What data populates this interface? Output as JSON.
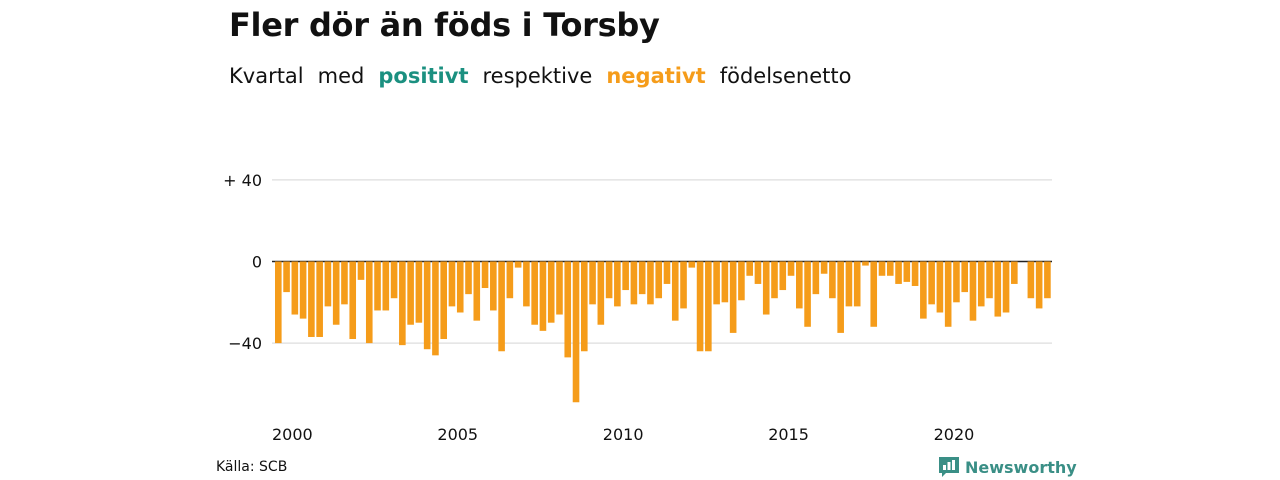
{
  "title": "Fler dör än föds i Torsby",
  "subtitle": {
    "w1": "Kvartal",
    "w2": "med",
    "positive": "positivt",
    "w3": "respektive",
    "negative": "negativt",
    "w4": "födelsenetto"
  },
  "colors": {
    "positive": "#1b9080",
    "negative": "#f59c1a",
    "brand": "#3a8f86"
  },
  "source": "Källa: SCB",
  "brand": {
    "name": "Newsworthy",
    "icon": "newsworthy-logo-icon"
  },
  "chart_data": {
    "type": "bar",
    "title": "Fler dör än föds i Torsby",
    "x_ticks": [
      "2000",
      "2005",
      "2010",
      "2015",
      "2020"
    ],
    "y_ticks": [
      {
        "value": 40,
        "label": "+ 40"
      },
      {
        "value": 0,
        "label": "0"
      },
      {
        "value": -40,
        "label": "−40"
      }
    ],
    "ylim": [
      -70,
      45
    ],
    "x_start_year": 2000,
    "grid": true,
    "values": [
      -40,
      -15,
      -26,
      -28,
      -37,
      -37,
      -22,
      -31,
      -21,
      -38,
      -9,
      -40,
      -24,
      -24,
      -18,
      -41,
      -31,
      -30,
      -43,
      -46,
      -38,
      -22,
      -25,
      -16,
      -29,
      -13,
      -24,
      -44,
      -18,
      -3,
      -22,
      -31,
      -34,
      -30,
      -26,
      -47,
      -69,
      -44,
      -21,
      -31,
      -18,
      -22,
      -14,
      -21,
      -16,
      -21,
      -18,
      -11,
      -29,
      -23,
      -3,
      -44,
      -44,
      -21,
      -20,
      -35,
      -19,
      -7,
      -11,
      -26,
      -18,
      -14,
      -7,
      -23,
      -32,
      -16,
      -6,
      -18,
      -35,
      -22,
      -22,
      -2,
      -32,
      -7,
      -7,
      -11,
      -10,
      -12,
      -28,
      -21,
      -25,
      -32,
      -20,
      -15,
      -29,
      -22,
      -18,
      -27,
      -25,
      -11,
      0,
      -18,
      -23,
      -18
    ]
  }
}
